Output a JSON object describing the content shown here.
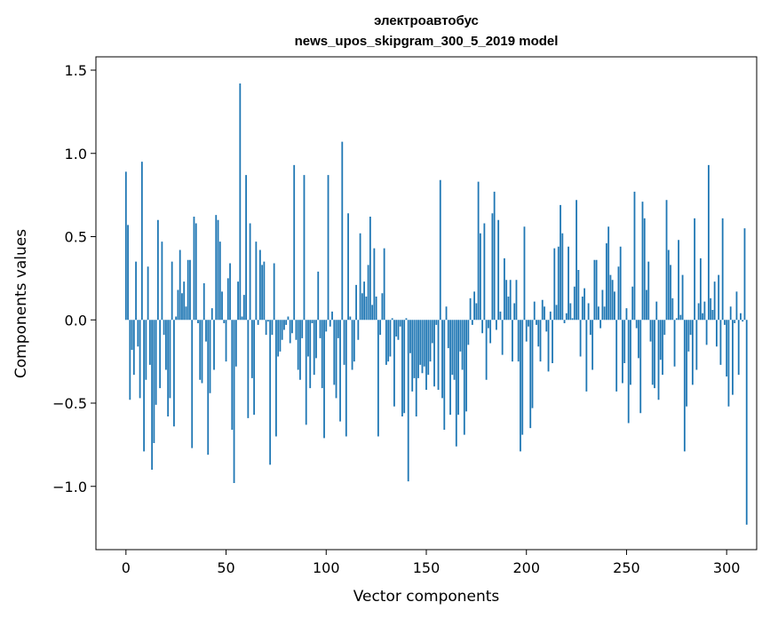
{
  "chart_data": {
    "type": "bar",
    "title_line1": "электроавтобус",
    "title_line2": "news_upos_skipgram_300_5_2019 model",
    "xlabel": "Vector components",
    "ylabel": "Components values",
    "xlim": [
      -15,
      315
    ],
    "ylim": [
      -1.38,
      1.58
    ],
    "xticks": [
      0,
      50,
      100,
      150,
      200,
      250,
      300
    ],
    "xtick_labels": [
      "0",
      "50",
      "100",
      "150",
      "200",
      "250",
      "300"
    ],
    "yticks": [
      -1.0,
      -0.5,
      0.0,
      0.5,
      1.0,
      1.5
    ],
    "ytick_labels": [
      "−1.0",
      "−0.5",
      "0.0",
      "0.5",
      "1.0",
      "1.5"
    ],
    "bar_color": "#1f77b4",
    "values": [
      0.89,
      0.57,
      -0.48,
      -0.18,
      -0.33,
      0.35,
      -0.16,
      -0.47,
      0.95,
      -0.79,
      -0.36,
      0.32,
      -0.27,
      -0.9,
      -0.74,
      -0.51,
      0.6,
      -0.41,
      0.47,
      -0.09,
      -0.3,
      -0.58,
      -0.47,
      0.35,
      -0.64,
      0.02,
      0.18,
      0.42,
      0.16,
      0.23,
      0.08,
      0.36,
      0.36,
      -0.77,
      0.62,
      0.58,
      -0.02,
      -0.36,
      -0.38,
      0.22,
      -0.13,
      -0.81,
      -0.44,
      0.07,
      -0.3,
      0.63,
      0.6,
      0.47,
      0.17,
      -0.02,
      -0.25,
      0.25,
      0.34,
      -0.66,
      -0.98,
      -0.28,
      0.23,
      1.42,
      0.02,
      0.15,
      0.87,
      -0.59,
      0.58,
      -0.35,
      -0.57,
      0.47,
      -0.03,
      0.42,
      0.33,
      0.35,
      -0.09,
      -0.01,
      -0.87,
      -0.09,
      0.34,
      -0.7,
      -0.22,
      -0.19,
      -0.12,
      -0.06,
      -0.03,
      0.02,
      -0.14,
      -0.08,
      0.93,
      -0.12,
      -0.3,
      -0.36,
      -0.11,
      0.87,
      -0.63,
      -0.22,
      -0.41,
      -0.02,
      -0.33,
      -0.23,
      0.29,
      -0.11,
      -0.41,
      -0.71,
      -0.07,
      0.87,
      -0.04,
      0.05,
      -0.39,
      -0.47,
      -0.11,
      -0.61,
      1.07,
      -0.27,
      -0.7,
      0.64,
      0.02,
      -0.3,
      -0.25,
      0.21,
      -0.12,
      0.52,
      0.16,
      0.23,
      0.14,
      0.33,
      0.62,
      0.09,
      0.43,
      0.14,
      -0.7,
      -0.09,
      0.16,
      0.43,
      -0.27,
      -0.25,
      -0.22,
      0.01,
      -0.52,
      -0.1,
      -0.12,
      -0.04,
      -0.58,
      -0.56,
      0.01,
      -0.97,
      -0.2,
      -0.43,
      -0.35,
      -0.58,
      -0.35,
      -0.27,
      -0.32,
      -0.28,
      -0.42,
      -0.33,
      -0.25,
      -0.14,
      -0.4,
      -0.03,
      -0.42,
      0.84,
      -0.47,
      -0.66,
      0.08,
      -0.17,
      -0.57,
      -0.33,
      -0.36,
      -0.76,
      -0.57,
      -0.19,
      -0.3,
      -0.69,
      -0.55,
      -0.15,
      0.13,
      -0.03,
      0.17,
      0.1,
      0.83,
      0.52,
      -0.08,
      0.58,
      -0.36,
      -0.05,
      -0.14,
      0.64,
      0.77,
      -0.06,
      0.6,
      0.05,
      -0.21,
      0.37,
      0.24,
      0.14,
      0.24,
      -0.25,
      0.1,
      0.24,
      -0.25,
      -0.79,
      -0.69,
      0.56,
      -0.13,
      -0.04,
      -0.65,
      -0.53,
      0.11,
      -0.03,
      -0.16,
      -0.25,
      0.12,
      0.08,
      -0.07,
      -0.31,
      0.05,
      -0.26,
      0.43,
      0.09,
      0.44,
      0.69,
      0.52,
      -0.02,
      0.04,
      0.44,
      0.1,
      0.01,
      0.2,
      0.72,
      0.3,
      -0.22,
      0.14,
      0.19,
      -0.43,
      0.1,
      -0.09,
      -0.3,
      0.36,
      0.36,
      0.08,
      -0.05,
      0.18,
      0.08,
      0.46,
      0.56,
      0.27,
      0.24,
      0.17,
      -0.43,
      0.32,
      0.44,
      -0.38,
      -0.26,
      0.07,
      -0.62,
      -0.39,
      0.2,
      0.77,
      -0.05,
      -0.23,
      -0.56,
      0.71,
      0.61,
      0.18,
      0.35,
      -0.13,
      -0.39,
      -0.41,
      0.11,
      -0.48,
      -0.24,
      -0.33,
      -0.09,
      0.72,
      0.42,
      0.33,
      0.13,
      -0.28,
      0.01,
      0.48,
      0.03,
      0.27,
      -0.79,
      -0.52,
      -0.19,
      -0.09,
      -0.39,
      0.61,
      -0.3,
      0.1,
      0.37,
      0.04,
      0.11,
      -0.15,
      0.93,
      0.13,
      0.06,
      0.23,
      -0.16,
      0.27,
      -0.27,
      0.61,
      -0.03,
      -0.34,
      -0.52,
      0.08,
      -0.45,
      -0.02,
      0.17,
      -0.33,
      0.04,
      -0.01,
      0.55,
      -1.23
    ]
  }
}
